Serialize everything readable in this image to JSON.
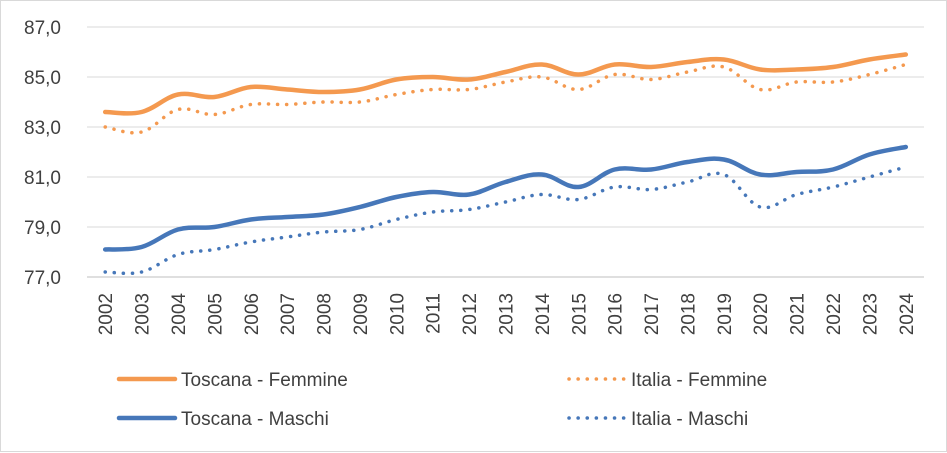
{
  "chart_data": {
    "type": "line",
    "title": "",
    "xlabel": "",
    "ylabel": "",
    "ylim": [
      77,
      87
    ],
    "yticks": [
      "77,0",
      "79,0",
      "81,0",
      "83,0",
      "85,0",
      "87,0"
    ],
    "ytick_values": [
      77,
      79,
      81,
      83,
      85,
      87
    ],
    "categories": [
      "2002",
      "2003",
      "2004",
      "2005",
      "2006",
      "2007",
      "2008",
      "2009",
      "2010",
      "2011",
      "2012",
      "2013",
      "2014",
      "2015",
      "2016",
      "2017",
      "2018",
      "2019",
      "2020",
      "2021",
      "2022",
      "2023",
      "2024"
    ],
    "grid": "horizontal",
    "legend_position": "bottom",
    "series": [
      {
        "name": "Toscana - Femmine",
        "color": "#f4994f",
        "style": "solid",
        "values": [
          83.6,
          83.6,
          84.3,
          84.2,
          84.6,
          84.5,
          84.4,
          84.5,
          84.9,
          85.0,
          84.9,
          85.2,
          85.5,
          85.1,
          85.5,
          85.4,
          85.6,
          85.7,
          85.3,
          85.3,
          85.4,
          85.7,
          85.9
        ]
      },
      {
        "name": "Italia - Femmine",
        "color": "#f4994f",
        "style": "dotted",
        "values": [
          83.0,
          82.8,
          83.7,
          83.5,
          83.9,
          83.9,
          84.0,
          84.0,
          84.3,
          84.5,
          84.5,
          84.8,
          85.0,
          84.5,
          85.1,
          84.9,
          85.2,
          85.4,
          84.5,
          84.8,
          84.8,
          85.1,
          85.5
        ]
      },
      {
        "name": "Toscana - Maschi",
        "color": "#4677b9",
        "style": "solid",
        "values": [
          78.1,
          78.2,
          78.9,
          79.0,
          79.3,
          79.4,
          79.5,
          79.8,
          80.2,
          80.4,
          80.3,
          80.8,
          81.1,
          80.6,
          81.3,
          81.3,
          81.6,
          81.7,
          81.1,
          81.2,
          81.3,
          81.9,
          82.2
        ]
      },
      {
        "name": "Italia - Maschi",
        "color": "#4677b9",
        "style": "dotted",
        "values": [
          77.2,
          77.2,
          77.9,
          78.1,
          78.4,
          78.6,
          78.8,
          78.9,
          79.3,
          79.6,
          79.7,
          80.0,
          80.3,
          80.1,
          80.6,
          80.5,
          80.8,
          81.1,
          79.8,
          80.3,
          80.6,
          81.0,
          81.4
        ]
      }
    ]
  }
}
